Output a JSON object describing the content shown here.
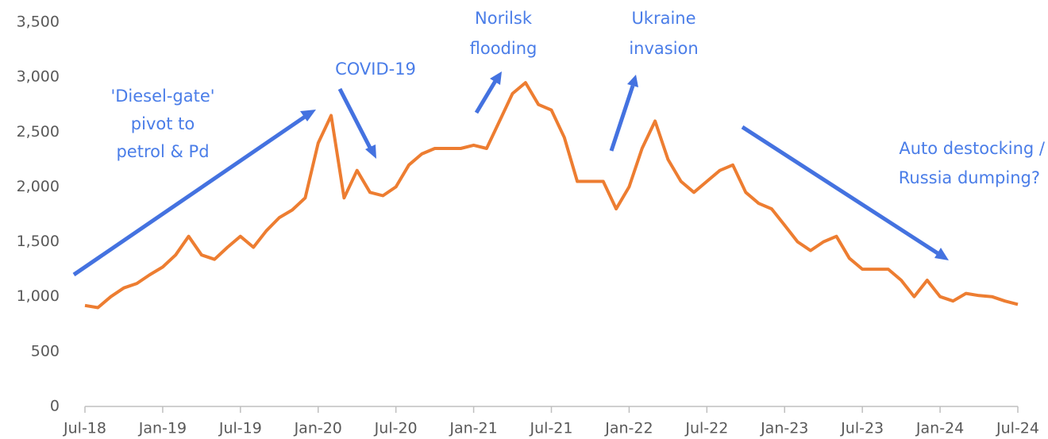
{
  "chart_data": {
    "type": "line",
    "categories": [
      "Jul-18",
      null,
      null,
      null,
      null,
      null,
      "Jan-19",
      null,
      null,
      null,
      null,
      null,
      "Jul-19",
      null,
      null,
      null,
      null,
      null,
      "Jan-20",
      null,
      null,
      null,
      null,
      null,
      "Jul-20",
      null,
      null,
      null,
      null,
      null,
      "Jan-21",
      null,
      null,
      null,
      null,
      null,
      "Jul-21",
      null,
      null,
      null,
      null,
      null,
      "Jan-22",
      null,
      null,
      null,
      null,
      null,
      "Jul-22",
      null,
      null,
      null,
      null,
      null,
      "Jan-23",
      null,
      null,
      null,
      null,
      null,
      "Jul-23",
      null,
      null,
      null,
      null,
      null,
      "Jan-24",
      null,
      null,
      null,
      null,
      null,
      "Jul-24"
    ],
    "series": [
      {
        "color": "#ed7d31",
        "values": [
          920,
          900,
          1000,
          1080,
          1120,
          1200,
          1270,
          1380,
          1550,
          1380,
          1340,
          1450,
          1550,
          1450,
          1600,
          1720,
          1790,
          1900,
          2400,
          2650,
          1900,
          2150,
          1950,
          1920,
          2000,
          2200,
          2300,
          2350,
          2350,
          2350,
          2380,
          2350,
          2600,
          2850,
          2950,
          2750,
          2700,
          2450,
          2050,
          2050,
          2050,
          1800,
          2000,
          2350,
          2600,
          2250,
          2050,
          1950,
          2050,
          2150,
          2200,
          1950,
          1850,
          1800,
          1650,
          1500,
          1420,
          1500,
          1550,
          1350,
          1250,
          1250,
          1250,
          1150,
          1000,
          1150,
          1000,
          960,
          1030,
          1010,
          1000,
          960,
          930
        ]
      }
    ],
    "ylim": [
      0,
      3500
    ],
    "yticks": [
      0,
      500,
      {
        "value": 1000,
        "label": "1,000"
      },
      {
        "value": 1500,
        "label": "1,500"
      },
      {
        "value": 2000,
        "label": "2,000"
      },
      {
        "value": 2500,
        "label": "2,500"
      },
      {
        "value": 3000,
        "label": "3,000"
      },
      {
        "value": 3500,
        "label": "3,500"
      }
    ],
    "annotations": [
      {
        "lines": [
          "'Diesel-gate'",
          "pivot to",
          "petrol & Pd"
        ]
      },
      {
        "lines": [
          "COVID-19"
        ]
      },
      {
        "lines": [
          "Norilsk",
          "flooding"
        ]
      },
      {
        "lines": [
          "Ukraine",
          "invasion"
        ]
      },
      {
        "lines": [
          "Auto destocking /",
          "Russia dumping?"
        ]
      }
    ]
  }
}
